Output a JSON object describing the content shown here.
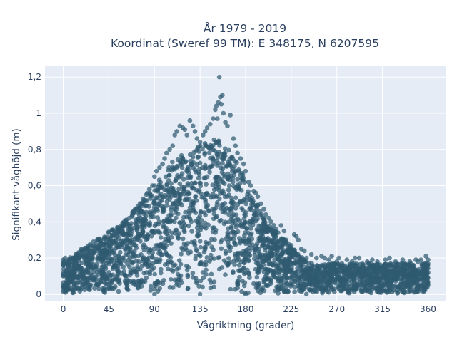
{
  "chart_data": {
    "type": "scatter",
    "title": "År 1979 - 2019",
    "subtitle": "Koordinat (Sweref 99 TM): E 348175, N 6207595",
    "xlabel": "Vågriktning (grader)",
    "ylabel": "Signifikant våghöjd (m)",
    "xlim": [
      -18,
      378
    ],
    "ylim": [
      -0.04,
      1.26
    ],
    "x_ticks": [
      0,
      45,
      90,
      135,
      180,
      225,
      270,
      315,
      360
    ],
    "x_tick_labels": [
      "0",
      "45",
      "90",
      "135",
      "180",
      "225",
      "270",
      "315",
      "360"
    ],
    "y_ticks": [
      0,
      0.2,
      0.4,
      0.6,
      0.8,
      1,
      1.2
    ],
    "y_tick_labels": [
      "0",
      "0,2",
      "0,4",
      "0,6",
      "0,8",
      "1",
      "1,2"
    ],
    "grid": true,
    "point_color": "#2f5a70",
    "background_color": "#e5ecf6",
    "series": [
      {
        "points": [
          [
            0,
            0.17
          ],
          [
            0,
            0.12
          ],
          [
            0,
            0.05
          ],
          [
            0,
            0.19
          ],
          [
            2,
            0.2
          ],
          [
            5,
            0.15
          ],
          [
            8,
            0.03
          ],
          [
            10,
            0.19
          ],
          [
            15,
            0.2
          ],
          [
            18,
            0.25
          ],
          [
            22,
            0.22
          ],
          [
            25,
            0.2
          ],
          [
            30,
            0.24
          ],
          [
            35,
            0.26
          ],
          [
            38,
            0.24
          ],
          [
            42,
            0.28
          ],
          [
            45,
            0.3
          ],
          [
            48,
            0.32
          ],
          [
            52,
            0.31
          ],
          [
            55,
            0.33
          ],
          [
            58,
            0.35
          ],
          [
            60,
            0.4
          ],
          [
            62,
            0.41
          ],
          [
            65,
            0.42
          ],
          [
            68,
            0.43
          ],
          [
            70,
            0.45
          ],
          [
            72,
            0.47
          ],
          [
            75,
            0.48
          ],
          [
            78,
            0.5
          ],
          [
            80,
            0.52
          ],
          [
            82,
            0.55
          ],
          [
            85,
            0.58
          ],
          [
            88,
            0.6
          ],
          [
            90,
            0.65
          ],
          [
            92,
            0.68
          ],
          [
            95,
            0.7
          ],
          [
            98,
            0.72
          ],
          [
            100,
            0.75
          ],
          [
            102,
            0.78
          ],
          [
            105,
            0.8
          ],
          [
            108,
            0.82
          ],
          [
            110,
            0.88
          ],
          [
            112,
            0.9
          ],
          [
            115,
            0.93
          ],
          [
            118,
            0.92
          ],
          [
            120,
            0.91
          ],
          [
            122,
            0.88
          ],
          [
            125,
            0.96
          ],
          [
            128,
            0.93
          ],
          [
            130,
            0.9
          ],
          [
            132,
            0.86
          ],
          [
            135,
            0.84
          ],
          [
            138,
            0.88
          ],
          [
            140,
            0.9
          ],
          [
            142,
            0.92
          ],
          [
            145,
            0.94
          ],
          [
            148,
            0.97
          ],
          [
            150,
            1.02
          ],
          [
            151,
            1.04
          ],
          [
            152,
            0.97
          ],
          [
            153,
            1.06
          ],
          [
            154,
            1.2
          ],
          [
            155,
            1.09
          ],
          [
            156,
            1.05
          ],
          [
            157,
            1.1
          ],
          [
            158,
            1.0
          ],
          [
            160,
            0.95
          ],
          [
            162,
            0.93
          ],
          [
            165,
            0.99
          ],
          [
            168,
            0.86
          ],
          [
            170,
            0.82
          ],
          [
            172,
            0.78
          ],
          [
            175,
            0.75
          ],
          [
            178,
            0.72
          ],
          [
            180,
            0.68
          ],
          [
            183,
            0.62
          ],
          [
            185,
            0.6
          ],
          [
            188,
            0.57
          ],
          [
            190,
            0.56
          ],
          [
            192,
            0.54
          ],
          [
            195,
            0.5
          ],
          [
            198,
            0.47
          ],
          [
            200,
            0.44
          ],
          [
            203,
            0.42
          ],
          [
            205,
            0.4
          ],
          [
            208,
            0.38
          ],
          [
            210,
            0.36
          ],
          [
            212,
            0.34
          ],
          [
            215,
            0.38
          ],
          [
            218,
            0.35
          ],
          [
            220,
            0.3
          ],
          [
            222,
            0.28
          ],
          [
            225,
            0.27
          ],
          [
            228,
            0.33
          ],
          [
            230,
            0.32
          ],
          [
            232,
            0.3
          ],
          [
            235,
            0.25
          ],
          [
            238,
            0.24
          ],
          [
            240,
            0.2
          ],
          [
            245,
            0.22
          ],
          [
            250,
            0.2
          ],
          [
            255,
            0.21
          ],
          [
            258,
            0.2
          ],
          [
            262,
            0.19
          ],
          [
            265,
            0.21
          ],
          [
            270,
            0.18
          ],
          [
            272,
            0.2
          ],
          [
            275,
            0.17
          ],
          [
            280,
            0.19
          ],
          [
            285,
            0.18
          ],
          [
            288,
            0.2
          ],
          [
            292,
            0.2
          ],
          [
            300,
            0.18
          ],
          [
            305,
            0.19
          ],
          [
            310,
            0.18
          ],
          [
            318,
            0.19
          ],
          [
            322,
            0.2
          ],
          [
            328,
            0.18
          ],
          [
            335,
            0.19
          ],
          [
            342,
            0.18
          ],
          [
            348,
            0.19
          ],
          [
            350,
            0.18
          ],
          [
            353,
            0.19
          ],
          [
            358,
            0.21
          ],
          [
            360,
            0.19
          ],
          [
            360,
            0.12
          ],
          [
            360,
            0.05
          ],
          [
            240,
            0.0
          ],
          [
            262,
            0.01
          ],
          [
            300,
            0.02
          ],
          [
            330,
            0.01
          ],
          [
            180,
            0.0
          ],
          [
            135,
            0.0
          ],
          [
            90,
            0.0
          ]
        ]
      }
    ]
  }
}
